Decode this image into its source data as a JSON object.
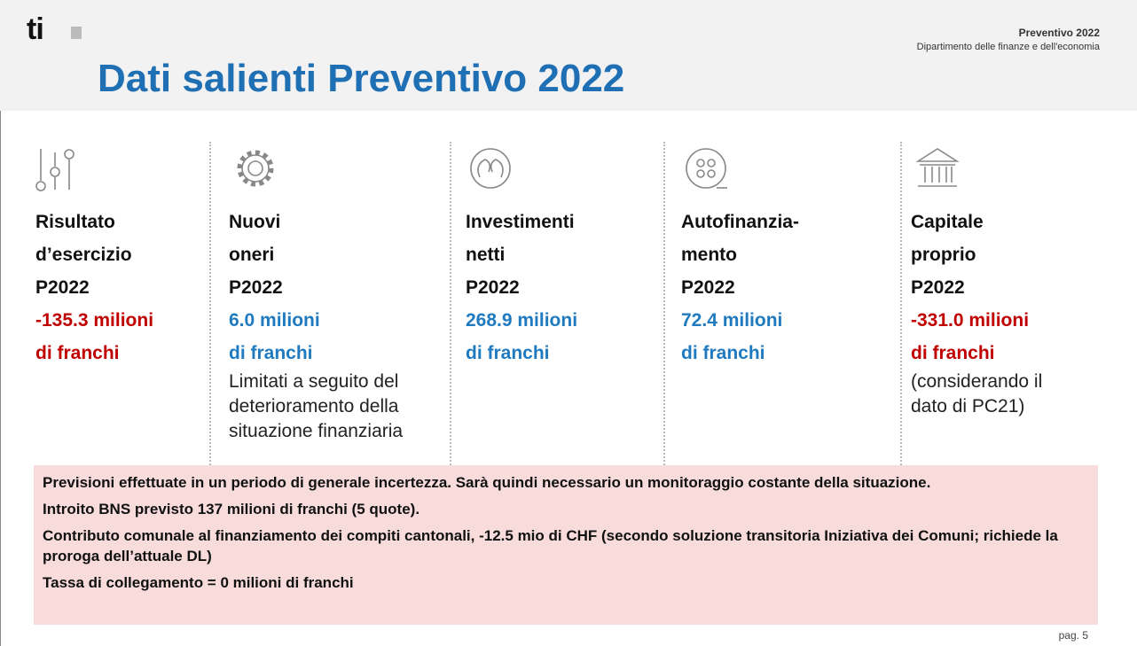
{
  "header": {
    "logo": "ti",
    "title": "Dati salienti Preventivo 2022",
    "report": "Preventivo 2022",
    "department": "Dipartimento delle finanze e dell'economia"
  },
  "columns": [
    {
      "heading": [
        "Risultato",
        "d’esercizio",
        "P2022"
      ],
      "value": [
        "-135.3 milioni",
        "di franchi"
      ],
      "color": "#c00000",
      "note": []
    },
    {
      "heading": [
        "Nuovi",
        "oneri",
        "P2022"
      ],
      "value": [
        "6.0 milioni",
        "di franchi"
      ],
      "color": "#1f7ac0",
      "note": [
        "Limitati a seguito del",
        "deterioramento della",
        "situazione finanziaria"
      ]
    },
    {
      "heading": [
        "Investimenti",
        "netti",
        "P2022"
      ],
      "value": [
        "268.9 milioni",
        "di franchi"
      ],
      "color": "#1f7ac0",
      "note": []
    },
    {
      "heading": [
        "Autofinanzia-",
        "mento",
        "P2022"
      ],
      "value": [
        "72.4 milioni",
        "di franchi"
      ],
      "color": "#1f7ac0",
      "note": []
    },
    {
      "heading": [
        "Capitale",
        "proprio",
        "P2022"
      ],
      "value": [
        "-331.0 milioni",
        "di franchi"
      ],
      "color": "#c00000",
      "note": [
        "(considerando il",
        "dato di PC21)"
      ]
    }
  ],
  "notes": [
    "Previsioni effettuate in un periodo di generale incertezza. Sarà quindi necessario un monitoraggio costante della situazione.",
    "Introito BNS previsto 137 milioni di franchi (5 quote).",
    "Contributo comunale al finanziamento dei compiti cantonali, -12.5 mio di CHF (secondo soluzione transitoria Iniziativa dei Comuni; richiede la proroga dell’attuale DL)",
    "Tassa di collegamento = 0 milioni di franchi"
  ],
  "footer": {
    "page": "pag. 5"
  }
}
